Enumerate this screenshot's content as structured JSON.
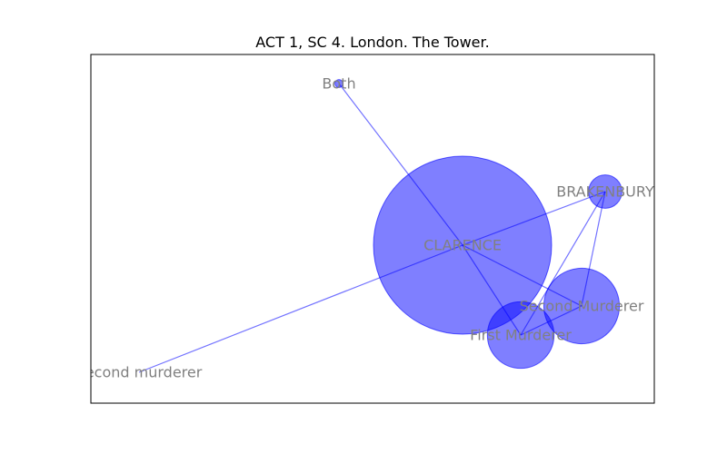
{
  "title": "ACT 1, SC 4. London. The Tower.",
  "colors": {
    "node": "#0000ff",
    "edge": "#0000ff",
    "label": "#808080"
  },
  "nodes": [
    {
      "id": "both",
      "label": "Both",
      "weight": 0.2
    },
    {
      "id": "clarence",
      "label": "CLARENCE",
      "weight": 100
    },
    {
      "id": "brakenbury",
      "label": "BRAKENBURY",
      "weight": 3.5
    },
    {
      "id": "second-murderer",
      "label": "Second Murderer",
      "weight": 18
    },
    {
      "id": "first-murderer",
      "label": "First Murderer",
      "weight": 14
    },
    {
      "id": "second-murderer-lower",
      "label": "Second murderer",
      "weight": 0
    }
  ],
  "edges": [
    [
      "both",
      "clarence"
    ],
    [
      "clarence",
      "brakenbury"
    ],
    [
      "clarence",
      "second-murderer"
    ],
    [
      "clarence",
      "first-murderer"
    ],
    [
      "clarence",
      "second-murderer-lower"
    ],
    [
      "brakenbury",
      "second-murderer"
    ],
    [
      "brakenbury",
      "first-murderer"
    ],
    [
      "second-murderer",
      "first-murderer"
    ]
  ]
}
